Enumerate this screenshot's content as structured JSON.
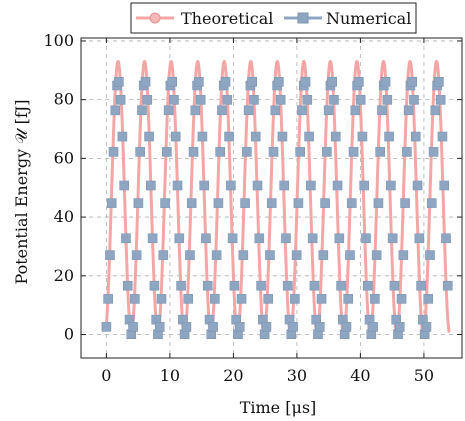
{
  "chart_data": {
    "type": "line",
    "xlabel": "Time [μs]",
    "ylabel": "Potential Energy 𝒰 [fJ]",
    "xlim": [
      -4,
      56
    ],
    "ylim": [
      -8,
      101
    ],
    "xticks": [
      0,
      10,
      20,
      30,
      40,
      50
    ],
    "yticks": [
      0,
      20,
      40,
      60,
      80,
      100
    ],
    "grid": true,
    "legend_position": "top-center",
    "x_range": [
      0,
      54
    ],
    "series": [
      {
        "name": "Theoretical",
        "color": "#f4a6a6",
        "marker": "circle",
        "peak": 93,
        "trough": 0,
        "period": 4.18,
        "phase_deg": 202
      },
      {
        "name": "Numerical",
        "color": "#8ea6c2",
        "marker": "square",
        "peak": 86.5,
        "trough": 0,
        "period": 4.2,
        "phase_deg": 200,
        "sample_step": 0.28
      }
    ]
  }
}
